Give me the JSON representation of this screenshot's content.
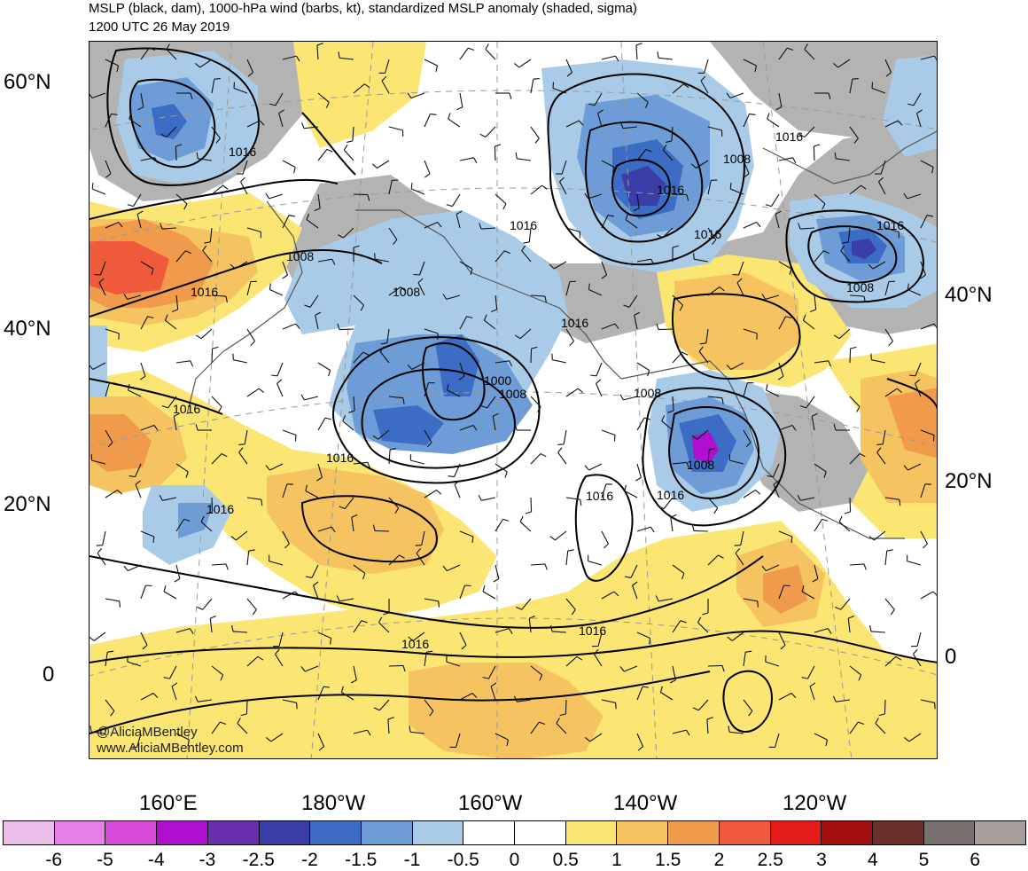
{
  "title_line1": "MSLP (black, dam), 1000-hPa wind (barbs, kt), standardized MSLP anomaly (shaded, sigma)",
  "title_line2": "1200 UTC 26 May 2019",
  "credit": [
    "@AliciaMBentley",
    "www.AliciaMBentley.com"
  ],
  "lat_labels_left": [
    "60°N",
    "40°N",
    "20°N",
    "0"
  ],
  "lat_labels_right": [
    "40°N",
    "20°N",
    "0"
  ],
  "lon_labels": [
    "160°E",
    "180°W",
    "160°W",
    "140°W",
    "120°W"
  ],
  "isobar_labels": [
    {
      "text": "1016"
    },
    {
      "text": "1016"
    },
    {
      "text": "1008"
    },
    {
      "text": "1016"
    },
    {
      "text": "1008"
    },
    {
      "text": "1016"
    },
    {
      "text": "1016"
    },
    {
      "text": "1008"
    },
    {
      "text": "1016"
    },
    {
      "text": "1008"
    },
    {
      "text": "1016"
    },
    {
      "text": "1016"
    },
    {
      "text": "1016"
    },
    {
      "text": "1008"
    },
    {
      "text": "1016"
    },
    {
      "text": "1008"
    },
    {
      "text": "1000"
    },
    {
      "text": "1016"
    },
    {
      "text": "1008"
    },
    {
      "text": "1016"
    },
    {
      "text": "1016"
    },
    {
      "text": "1016"
    },
    {
      "text": "1016"
    }
  ],
  "colorbar": {
    "colors": [
      "#ecbfea",
      "#e680e6",
      "#d84ad8",
      "#b00fd0",
      "#6a2fb0",
      "#3a3ea6",
      "#3c6cc4",
      "#6e9cd6",
      "#a9cbe8",
      "#ffffff",
      "#ffffff",
      "#fbe673",
      "#f5c461",
      "#f09a4c",
      "#ef5a3a",
      "#e51b1b",
      "#a30e0e",
      "#6b2e28",
      "#77706e",
      "#a89e9c"
    ],
    "labels": [
      "-6",
      "-5",
      "-4",
      "-3",
      "-2.5",
      "-2",
      "-1.5",
      "-1",
      "-0.5",
      "0",
      "0.5",
      "1",
      "1.5",
      "2",
      "2.5",
      "3",
      "4",
      "5",
      "6"
    ]
  },
  "shading_colors": {
    "neg1": "#a9cbe8",
    "neg2": "#6e9cd6",
    "neg3": "#3c6cc4",
    "neg4": "#3a3ea6",
    "neg5": "#b00fd0",
    "pos1": "#fbe673",
    "pos2": "#f5c461",
    "pos3": "#f09a4c",
    "pos4": "#ef5a3a",
    "pos6": "#b3b3b3"
  }
}
